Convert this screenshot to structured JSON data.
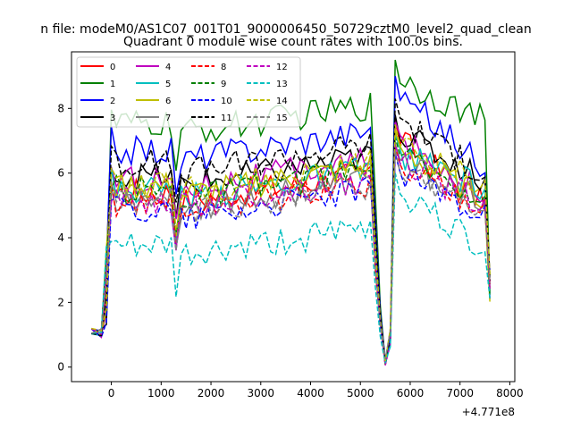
{
  "chart_data": {
    "type": "line",
    "suptitle": "n file: modeM0/AS1C07_001T01_9000006450_50729cztM0_level2_quad_clean",
    "title": "Quadrant 0 module wise count rates with 100.0s bins.",
    "xlabel": "",
    "ylabel": "",
    "x_offset_label": "+4.771e8",
    "xlim": [
      -800,
      8100
    ],
    "ylim": [
      -0.45,
      9.75
    ],
    "x_ticks": [
      0,
      1000,
      2000,
      3000,
      4000,
      5000,
      6000,
      7000,
      8000
    ],
    "x_tick_labels": [
      "0",
      "1000",
      "2000",
      "3000",
      "4000",
      "5000",
      "6000",
      "7000",
      "8000"
    ],
    "y_ticks": [
      0,
      2,
      4,
      6,
      8
    ],
    "y_tick_labels": [
      "0",
      "2",
      "4",
      "6",
      "8"
    ],
    "legend_location": "upper-left",
    "legend_columns": 4,
    "bin_size_s": 100,
    "segments": [
      [
        -400,
        -200,
        -100,
        0,
        100,
        200,
        300,
        400,
        500,
        600,
        700,
        800,
        900,
        1000,
        1100,
        1200,
        1300,
        1400,
        1500,
        1600,
        1700,
        1800,
        1900,
        2000,
        2100,
        2200,
        2300,
        2400,
        2500,
        2600,
        2700,
        2800,
        2900,
        3000,
        3100,
        3200,
        3300,
        3400,
        3500,
        3600,
        3700,
        3800,
        3900,
        4000,
        4100,
        4200,
        4300,
        4400,
        4500,
        4600,
        4700,
        4800,
        4900,
        5000,
        5100,
        5200,
        5300,
        5400,
        5500,
        5600,
        5700,
        5800,
        5900,
        6000,
        6100,
        6200,
        6300,
        6400,
        6500,
        6600,
        6700,
        6800,
        6900,
        7000,
        7100,
        7200,
        7300,
        7400,
        7500,
        7600
      ]
    ],
    "series": [
      {
        "name": "0",
        "color": "#ff0000",
        "dash": "solid",
        "level": 5.5,
        "tail": 5.0,
        "peak": 7.6
      },
      {
        "name": "1",
        "color": "#008000",
        "dash": "solid",
        "level": 7.6,
        "tail": 7.6,
        "peak": 9.5
      },
      {
        "name": "2",
        "color": "#0000ff",
        "dash": "solid",
        "level": 6.8,
        "tail": 6.2,
        "peak": 9.0
      },
      {
        "name": "3",
        "color": "#000000",
        "dash": "solid",
        "level": 6.0,
        "tail": 5.8,
        "peak": 7.8
      },
      {
        "name": "4",
        "color": "#bf00bf",
        "dash": "solid",
        "level": 5.9,
        "tail": 5.4,
        "peak": 7.6
      },
      {
        "name": "5",
        "color": "#00bfbf",
        "dash": "solid",
        "level": 5.6,
        "tail": 5.5,
        "peak": 7.2
      },
      {
        "name": "6",
        "color": "#bfbf00",
        "dash": "solid",
        "level": 5.7,
        "tail": 5.2,
        "peak": 7.3
      },
      {
        "name": "7",
        "color": "#808080",
        "dash": "solid",
        "level": 5.3,
        "tail": 5.1,
        "peak": 6.9
      },
      {
        "name": "8",
        "color": "#ff0000",
        "dash": "dashed",
        "level": 5.2,
        "tail": 5.0,
        "peak": 6.8
      },
      {
        "name": "9",
        "color": "#008000",
        "dash": "dashed",
        "level": 5.6,
        "tail": 5.3,
        "peak": 7.1
      },
      {
        "name": "10",
        "color": "#0000ff",
        "dash": "dashed",
        "level": 5.0,
        "tail": 4.8,
        "peak": 6.6
      },
      {
        "name": "11",
        "color": "#000000",
        "dash": "dashed",
        "level": 6.4,
        "tail": 5.9,
        "peak": 8.3
      },
      {
        "name": "12",
        "color": "#bf00bf",
        "dash": "dashed",
        "level": 5.3,
        "tail": 5.0,
        "peak": 6.9
      },
      {
        "name": "13",
        "color": "#00bfbf",
        "dash": "dashed",
        "level": 3.8,
        "tail": 3.6,
        "peak": 6.0
      },
      {
        "name": "14",
        "color": "#bfbf00",
        "dash": "dashed",
        "level": 5.8,
        "tail": 5.6,
        "peak": 7.5
      },
      {
        "name": "15",
        "color": "#808080",
        "dash": "dashed",
        "level": 5.1,
        "tail": 4.9,
        "peak": 6.7
      }
    ]
  }
}
